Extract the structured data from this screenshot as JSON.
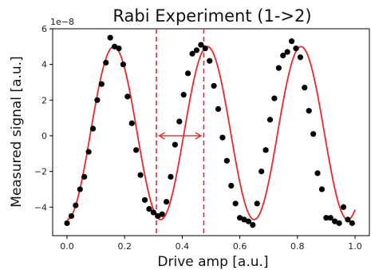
{
  "chart_data": {
    "type": "scatter",
    "title": "Rabi Experiment (1->2)",
    "xlabel": "Drive amp [a.u.]",
    "ylabel": "Measured signal [a.u.]",
    "y_scale_label": "1e−8",
    "xlim": [
      -0.05,
      1.05
    ],
    "ylim": [
      -5.6,
      6.0
    ],
    "x_ticks": [
      0.0,
      0.2,
      0.4,
      0.6,
      0.8,
      1.0
    ],
    "x_tick_labels": [
      "0.0",
      "0.2",
      "0.4",
      "0.6",
      "0.8",
      "1.0"
    ],
    "y_ticks": [
      -4,
      -2,
      0,
      2,
      4,
      6
    ],
    "y_tick_labels": [
      "−4",
      "−2",
      "0",
      "2",
      "4",
      "6"
    ],
    "grid": false,
    "series": [
      {
        "kind": "scatter",
        "color": "#000000",
        "x": [
          0.0,
          0.015,
          0.03,
          0.045,
          0.06,
          0.075,
          0.09,
          0.105,
          0.12,
          0.135,
          0.15,
          0.165,
          0.18,
          0.195,
          0.21,
          0.225,
          0.24,
          0.255,
          0.27,
          0.285,
          0.3,
          0.315,
          0.33,
          0.345,
          0.36,
          0.375,
          0.39,
          0.405,
          0.42,
          0.435,
          0.45,
          0.465,
          0.48,
          0.495,
          0.51,
          0.525,
          0.54,
          0.555,
          0.57,
          0.585,
          0.6,
          0.615,
          0.63,
          0.645,
          0.66,
          0.675,
          0.69,
          0.705,
          0.72,
          0.735,
          0.75,
          0.765,
          0.78,
          0.795,
          0.81,
          0.825,
          0.84,
          0.855,
          0.87,
          0.885,
          0.9,
          0.915,
          0.93,
          0.945,
          0.96,
          0.975,
          0.99
        ],
        "y": [
          -4.9,
          -4.5,
          -3.9,
          -3.0,
          -2.3,
          -0.9,
          0.4,
          2.0,
          2.9,
          4.1,
          5.5,
          5.0,
          4.9,
          4.0,
          2.2,
          0.7,
          -0.8,
          -2.2,
          -3.6,
          -4.1,
          -4.3,
          -4.5,
          -4.4,
          -3.7,
          -2.3,
          -0.5,
          0.8,
          2.3,
          3.5,
          4.6,
          4.8,
          5.1,
          4.9,
          4.2,
          2.8,
          1.5,
          -0.1,
          -1.4,
          -2.8,
          -3.8,
          -4.6,
          -4.7,
          -4.8,
          -5.0,
          -3.8,
          -2.0,
          -0.8,
          0.9,
          2.1,
          3.8,
          4.5,
          4.7,
          5.3,
          4.9,
          4.4,
          2.7,
          1.4,
          0.1,
          -2.1,
          -3.0,
          -4.6,
          -4.6,
          -4.8,
          -4.9,
          -4.0,
          -4.7,
          -4.9
        ]
      },
      {
        "kind": "fit",
        "color": "#e8282e",
        "model": "y = -A*cos(2*pi*x/period) + offset",
        "amplitude": 4.85,
        "period": 0.325,
        "offset": 0.15,
        "x_range": [
          0.0,
          1.0
        ]
      }
    ],
    "vlines": [
      {
        "x": 0.31,
        "color": "#e8282e",
        "style": "dashed"
      },
      {
        "x": 0.475,
        "color": "#e8282e",
        "style": "dashed"
      }
    ],
    "annotation_arrow": {
      "x_start": 0.32,
      "x_end": 0.465,
      "y": 0.0,
      "color": "#e8282e",
      "style": "double-headed"
    }
  }
}
